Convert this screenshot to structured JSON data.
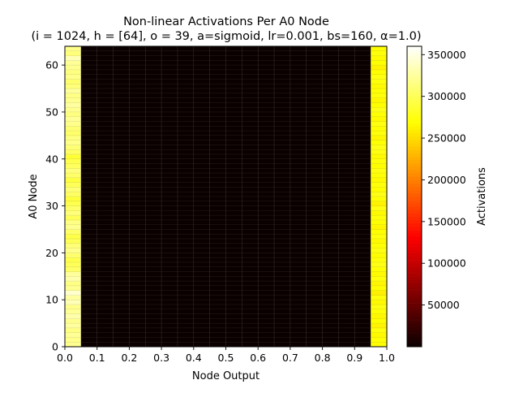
{
  "chart_data": {
    "type": "heatmap",
    "title_line1": "Non-linear Activations Per A0 Node",
    "title_line2": "(i = 1024, h = [64], o = 39, a=sigmoid, lr=0.001, bs=160, α=1.0)",
    "xlabel": "Node Output",
    "ylabel": "A0 Node",
    "colorbar_label": "Activations",
    "x_range": [
      0.0,
      1.0
    ],
    "y_range": [
      0,
      64
    ],
    "clim": [
      0,
      360000
    ],
    "x_bins": 20,
    "y_bins": 64,
    "x_ticks": [
      0.0,
      0.1,
      0.2,
      0.3,
      0.4,
      0.5,
      0.6,
      0.7,
      0.8,
      0.9,
      1.0
    ],
    "x_tick_labels": [
      "0.0",
      "0.1",
      "0.2",
      "0.3",
      "0.4",
      "0.5",
      "0.6",
      "0.7",
      "0.8",
      "0.9",
      "1.0"
    ],
    "y_ticks": [
      0,
      10,
      20,
      30,
      40,
      50,
      60
    ],
    "y_tick_labels": [
      "0",
      "10",
      "20",
      "30",
      "40",
      "50",
      "60"
    ],
    "colorbar_ticks": [
      50000,
      100000,
      150000,
      200000,
      250000,
      300000,
      350000
    ],
    "colorbar_tick_labels": [
      "50000",
      "100000",
      "150000",
      "200000",
      "250000",
      "300000",
      "350000"
    ],
    "colormap": "hot",
    "middle_bins_value": 0,
    "first_bin_values": [
      320000,
      318000,
      322000,
      316000,
      325000,
      320000,
      330000,
      322000,
      318000,
      334000,
      326000,
      342000,
      320000,
      316000,
      330000,
      324000,
      305000,
      300000,
      296000,
      308000,
      318000,
      312000,
      300000,
      294000,
      306000,
      320000,
      316000,
      300000,
      312000,
      306000,
      296000,
      290000,
      304000,
      310000,
      300000,
      292000,
      306000,
      312000,
      302000,
      296000,
      288000,
      304000,
      310000,
      318000,
      314000,
      306000,
      310000,
      318000,
      322000,
      314000,
      320000,
      326000,
      320000,
      316000,
      324000,
      312000,
      308000,
      318000,
      314000,
      320000,
      322000,
      334000,
      312000,
      318000
    ],
    "last_bin_values": [
      268000,
      270000,
      266000,
      272000,
      262000,
      268000,
      264000,
      270000,
      274000,
      266000,
      272000,
      260000,
      268000,
      264000,
      272000,
      266000,
      270000,
      276000,
      272000,
      268000,
      274000,
      270000,
      266000,
      272000,
      268000,
      264000,
      270000,
      272000,
      266000,
      274000,
      262000,
      270000,
      276000,
      268000,
      272000,
      266000,
      270000,
      274000,
      268000,
      272000,
      266000,
      274000,
      276000,
      270000,
      264000,
      272000,
      268000,
      274000,
      266000,
      270000,
      276000,
      268000,
      264000,
      272000,
      270000,
      266000,
      272000,
      274000,
      268000,
      262000,
      270000,
      266000,
      272000,
      268000
    ]
  }
}
